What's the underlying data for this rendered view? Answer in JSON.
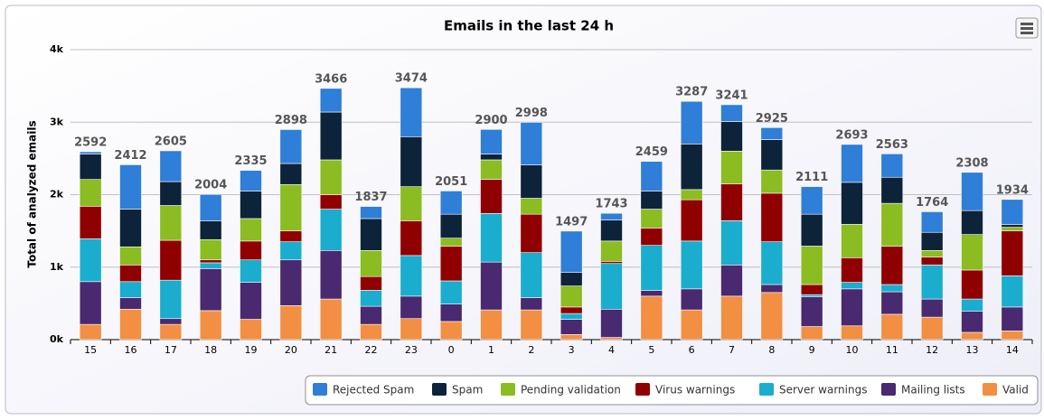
{
  "chart_data": {
    "type": "stacked_bar",
    "title": "Emails in the last 24 h",
    "y_label": "Total of analyzed emails",
    "categories": [
      "15",
      "16",
      "17",
      "18",
      "19",
      "20",
      "21",
      "22",
      "23",
      "0",
      "1",
      "2",
      "3",
      "4",
      "5",
      "6",
      "7",
      "8",
      "9",
      "10",
      "11",
      "12",
      "13",
      "14"
    ],
    "ylim": [
      0,
      4000
    ],
    "yticks": [
      {
        "value": 0,
        "label": "0k"
      },
      {
        "value": 1000,
        "label": "1k"
      },
      {
        "value": 2000,
        "label": "2k"
      },
      {
        "value": 3000,
        "label": "3k"
      },
      {
        "value": 4000,
        "label": "4k"
      }
    ],
    "grid": true,
    "totals": [
      2592,
      2412,
      2605,
      2004,
      2335,
      2898,
      3466,
      1837,
      3474,
      2051,
      2900,
      2998,
      1497,
      1743,
      2459,
      3287,
      3241,
      2925,
      2111,
      2693,
      2563,
      1764,
      2308,
      1934
    ],
    "series": [
      {
        "name": "Rejected Spam",
        "color": "#2f7ed8",
        "values": [
          32,
          612,
          425,
          364,
          285,
          468,
          326,
          167,
          674,
          321,
          340,
          588,
          567,
          93,
          409,
          587,
          231,
          165,
          381,
          523,
          323,
          284,
          528,
          344
        ]
      },
      {
        "name": "Spam",
        "color": "#0d233a",
        "values": [
          350,
          520,
          330,
          260,
          380,
          290,
          660,
          440,
          690,
          330,
          80,
          460,
          190,
          290,
          250,
          630,
          410,
          420,
          440,
          580,
          360,
          250,
          330,
          40
        ]
      },
      {
        "name": "Pending validation",
        "color": "#8bbc21",
        "values": [
          370,
          250,
          480,
          280,
          310,
          640,
          480,
          360,
          470,
          110,
          270,
          220,
          290,
          280,
          260,
          140,
          450,
          320,
          530,
          460,
          590,
          90,
          490,
          50
        ]
      },
      {
        "name": "Virus warnings",
        "color": "#910000",
        "values": [
          450,
          230,
          550,
          40,
          260,
          150,
          200,
          190,
          480,
          480,
          470,
          530,
          90,
          30,
          240,
          570,
          510,
          670,
          140,
          340,
          530,
          110,
          400,
          620
        ]
      },
      {
        "name": "Server warnings",
        "color": "#1aadce",
        "values": [
          590,
          220,
          530,
          80,
          310,
          250,
          570,
          220,
          560,
          320,
          670,
          620,
          80,
          630,
          620,
          660,
          610,
          590,
          30,
          90,
          100,
          470,
          170,
          430
        ]
      },
      {
        "name": "Mailing lists",
        "color": "#492970",
        "values": [
          590,
          160,
          80,
          580,
          510,
          630,
          670,
          250,
          310,
          240,
          660,
          170,
          210,
          390,
          80,
          290,
          430,
          110,
          410,
          510,
          310,
          250,
          290,
          330
        ]
      },
      {
        "name": "Valid",
        "color": "#f28f43",
        "values": [
          210,
          420,
          210,
          400,
          280,
          470,
          560,
          210,
          290,
          250,
          410,
          410,
          70,
          30,
          600,
          410,
          600,
          650,
          180,
          190,
          350,
          310,
          100,
          120
        ]
      }
    ]
  }
}
